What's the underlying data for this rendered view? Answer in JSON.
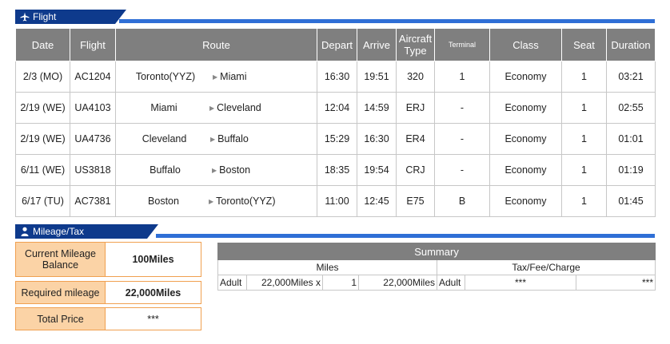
{
  "flight_section": {
    "title": "Flight"
  },
  "headers": {
    "date": "Date",
    "flight": "Flight",
    "route": "Route",
    "depart": "Depart",
    "arrive": "Arrive",
    "aircraft": "Aircraft Type",
    "terminal": "Terminal",
    "class": "Class",
    "seat": "Seat",
    "duration": "Duration"
  },
  "flights": [
    {
      "date": "2/3 (MO)",
      "flight": "AC1204",
      "from": "Toronto(YYZ)",
      "to": "Miami",
      "depart": "16:30",
      "arrive": "19:51",
      "aircraft": "320",
      "terminal": "1",
      "class": "Economy",
      "seat": "1",
      "duration": "03:21"
    },
    {
      "date": "2/19 (WE)",
      "flight": "UA4103",
      "from": "Miami",
      "to": "Cleveland",
      "depart": "12:04",
      "arrive": "14:59",
      "aircraft": "ERJ",
      "terminal": "-",
      "class": "Economy",
      "seat": "1",
      "duration": "02:55"
    },
    {
      "date": "2/19 (WE)",
      "flight": "UA4736",
      "from": "Cleveland",
      "to": "Buffalo",
      "depart": "15:29",
      "arrive": "16:30",
      "aircraft": "ER4",
      "terminal": "-",
      "class": "Economy",
      "seat": "1",
      "duration": "01:01"
    },
    {
      "date": "6/11 (WE)",
      "flight": "US3818",
      "from": "Buffalo",
      "to": "Boston",
      "depart": "18:35",
      "arrive": "19:54",
      "aircraft": "CRJ",
      "terminal": "-",
      "class": "Economy",
      "seat": "1",
      "duration": "01:19"
    },
    {
      "date": "6/17 (TU)",
      "flight": "AC7381",
      "from": "Boston",
      "to": "Toronto(YYZ)",
      "depart": "11:00",
      "arrive": "12:45",
      "aircraft": "E75",
      "terminal": "B",
      "class": "Economy",
      "seat": "1",
      "duration": "01:45"
    }
  ],
  "mileage_section": {
    "title": "Mileage/Tax"
  },
  "mileage": {
    "current_label": "Current Mileage Balance",
    "current_value": "100Miles",
    "required_label": "Required mileage",
    "required_value": "22,000Miles",
    "total_label": "Total Price",
    "total_value": "***"
  },
  "summary": {
    "title": "Summary",
    "miles_header": "Miles",
    "tax_header": "Tax/Fee/Charge",
    "row": {
      "pax_type": "Adult",
      "miles_per": "22,000Miles x",
      "count": "1",
      "miles_total": "22,000Miles",
      "pax_type2": "Adult",
      "tax1": "***",
      "tax2": "***"
    }
  },
  "icons": {
    "flight": "airplane-icon",
    "mileage": "person-icon"
  },
  "colors": {
    "header_blue": "#0e3a8c",
    "line_blue": "#2f6fd6",
    "table_header_gray": "#7f7f7f",
    "mileage_orange": "#fbd3a6"
  }
}
